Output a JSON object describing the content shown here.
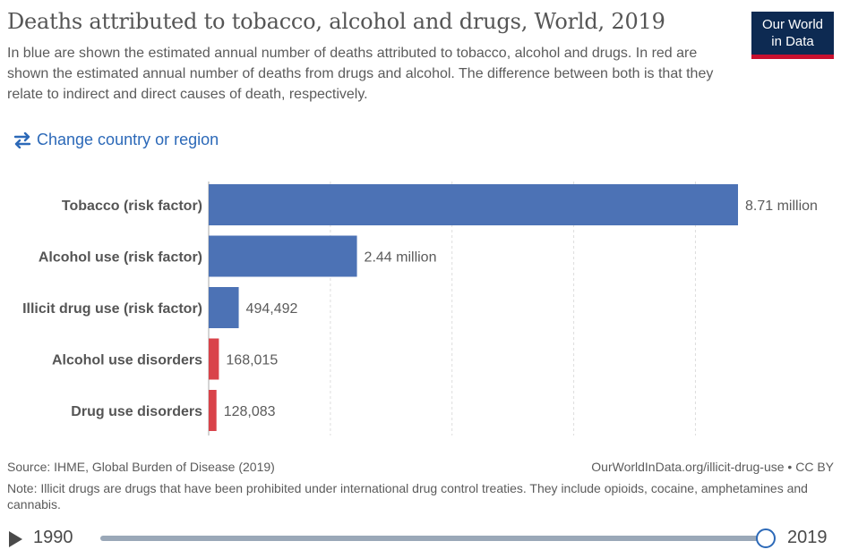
{
  "header": {
    "title": "Deaths attributed to tobacco, alcohol and drugs, World, 2019",
    "subtitle": "In blue are shown the estimated annual number of deaths attributed to tobacco, alcohol and drugs. In red are shown the estimated annual number of deaths from drugs and alcohol. The difference between both is that they relate to indirect and direct causes of death, respectively.",
    "logo_line1": "Our World",
    "logo_line2": "in Data"
  },
  "controls": {
    "change_country_label": "Change country or region",
    "change_country_icon": "swap-arrows-icon"
  },
  "chart_data": {
    "type": "bar",
    "orientation": "horizontal",
    "categories": [
      "Tobacco (risk factor)",
      "Alcohol use (risk factor)",
      "Illicit drug use (risk factor)",
      "Alcohol use disorders",
      "Drug use disorders"
    ],
    "values": [
      8710000,
      2440000,
      494492,
      168015,
      128083
    ],
    "value_labels": [
      "8.71 million",
      "2.44 million",
      "494,492",
      "168,015",
      "128,083"
    ],
    "colors": [
      "#4c72b5",
      "#4c72b5",
      "#4c72b5",
      "#d9434a",
      "#d9434a"
    ],
    "xlim": [
      0,
      8710000
    ],
    "grid": true
  },
  "footer": {
    "source": "Source: IHME, Global Burden of Disease (2019)",
    "url": "OurWorldInData.org/illicit-drug-use • CC BY",
    "note": "Note: Illicit drugs are drugs that have been prohibited under international drug control treaties. They include opioids, cocaine, amphetamines and cannabis."
  },
  "timeline": {
    "start_year": "1990",
    "end_year": "2019",
    "selected_fraction": 1.0
  }
}
